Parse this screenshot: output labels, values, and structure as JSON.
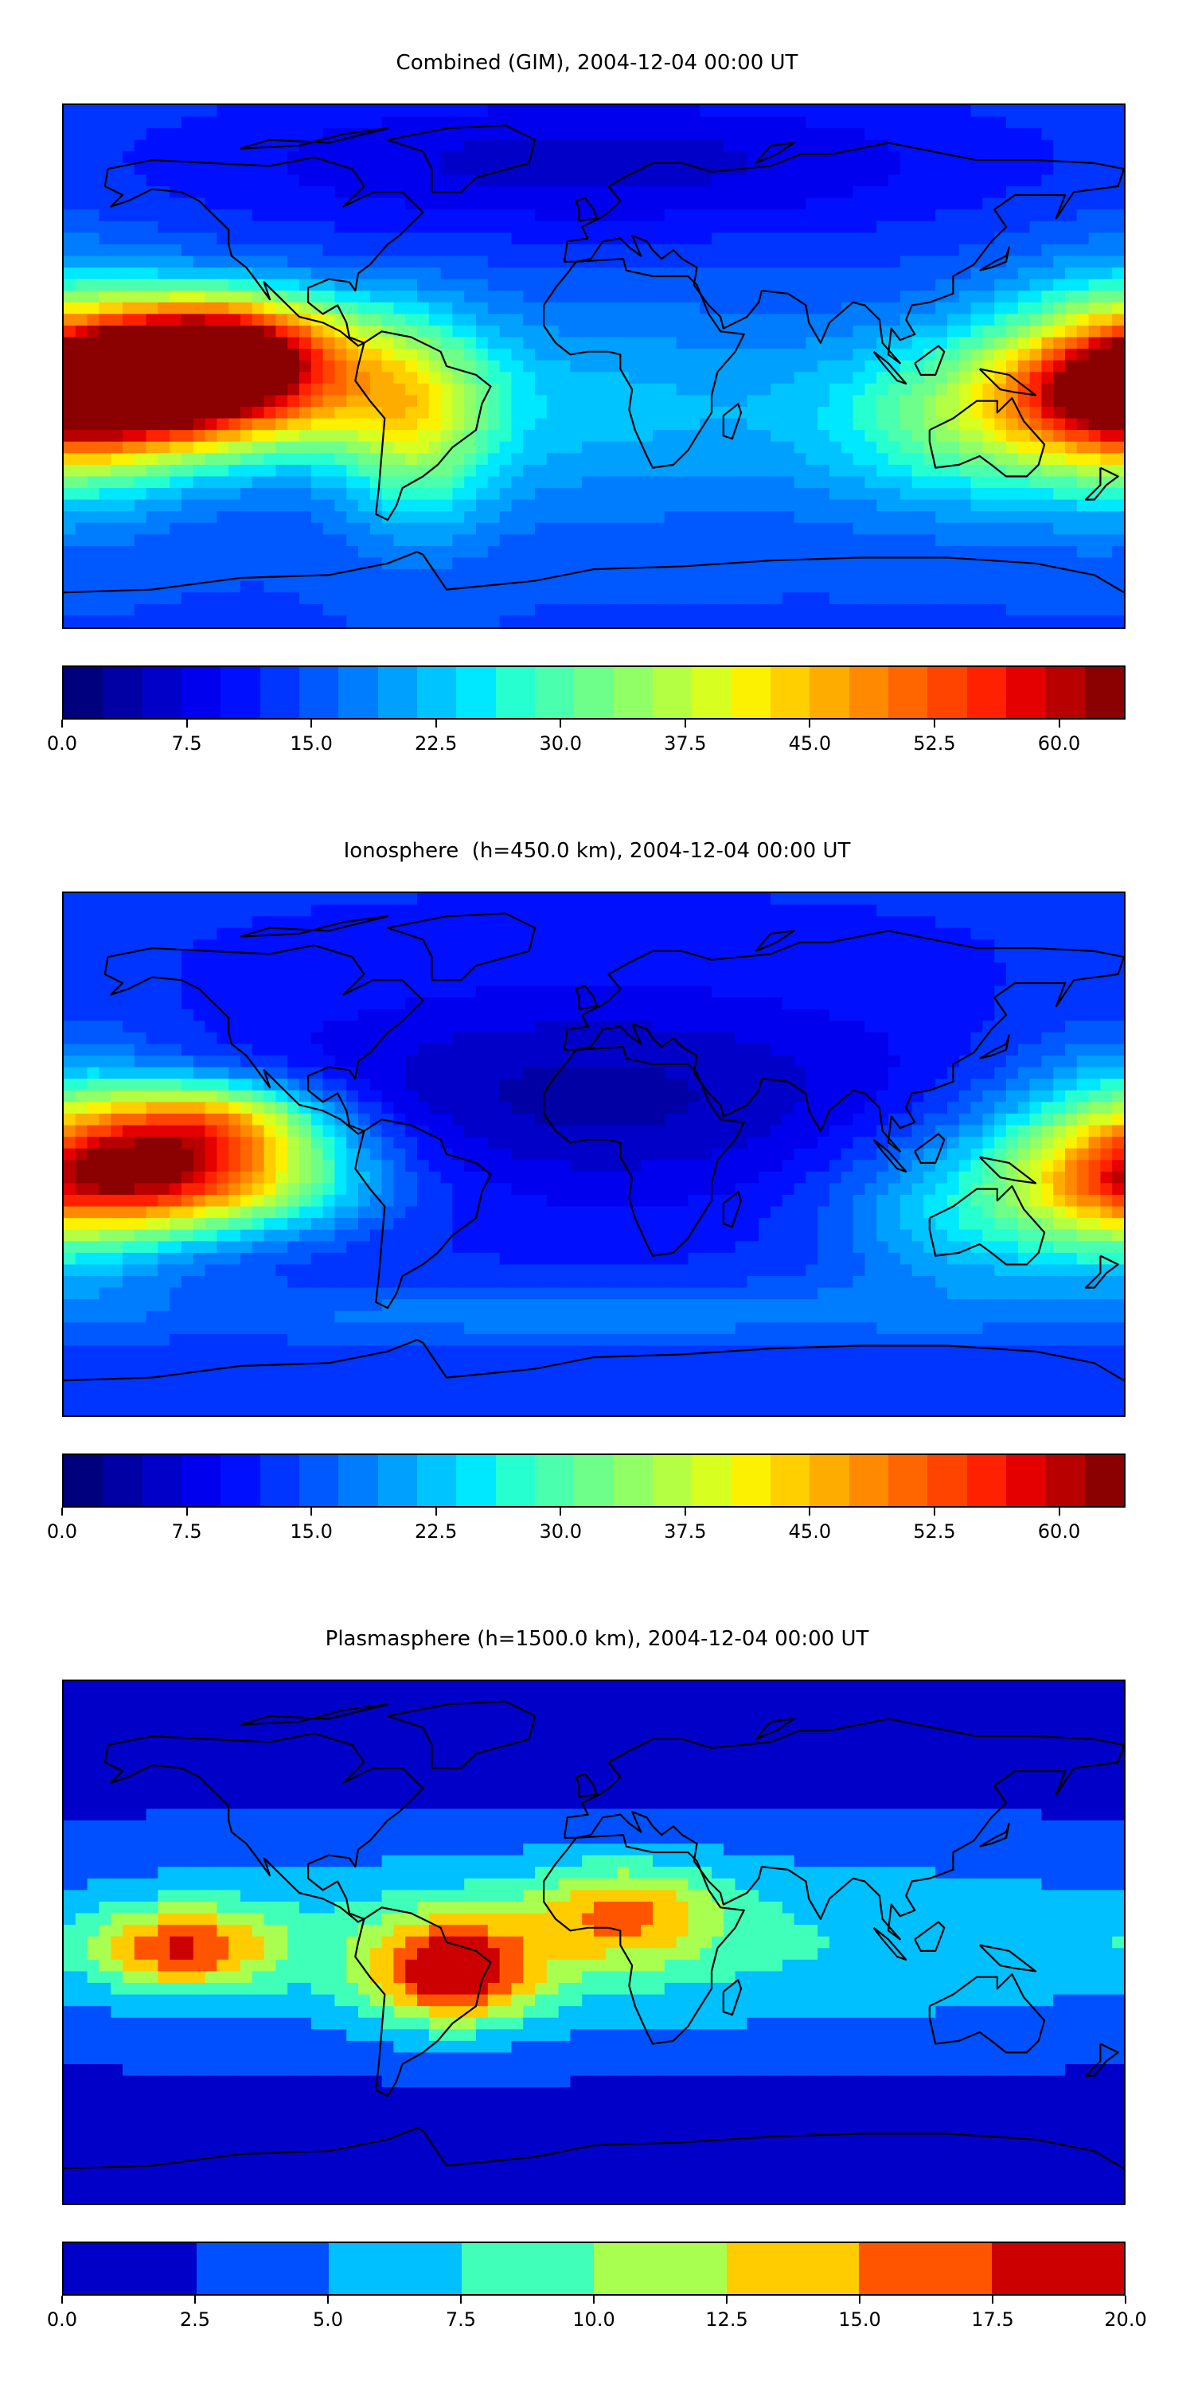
{
  "panels": [
    {
      "title": "Combined (GIM), 2004-12-04 00:00 UT",
      "quantity_scale": [
        0,
        64
      ],
      "colorbar": {
        "colors": [
          "#00007f",
          "#0000a4",
          "#0000c9",
          "#0000ee",
          "#0010ff",
          "#0034ff",
          "#0058ff",
          "#007cff",
          "#00a0ff",
          "#00c4ff",
          "#00e8ff",
          "#26ffd0",
          "#4affad",
          "#6dff8a",
          "#91ff66",
          "#b4ff43",
          "#d7ff1f",
          "#fbf100",
          "#ffcf00",
          "#ffac00",
          "#ff8900",
          "#ff6600",
          "#ff4400",
          "#ff2100",
          "#e50000",
          "#b80000",
          "#8b0000"
        ],
        "ticks": [
          "0.0",
          "7.5",
          "15.0",
          "22.5",
          "30.0",
          "37.5",
          "45.0",
          "52.5",
          "60.0"
        ],
        "tick_values": [
          0,
          7.5,
          15,
          22.5,
          30,
          37.5,
          45,
          52.5,
          60
        ],
        "range": [
          0,
          64
        ]
      },
      "features": [
        {
          "lon": -143,
          "lat": -8,
          "value": 64,
          "slon": 45,
          "slat": 15
        },
        {
          "lon": -125,
          "lat": 10,
          "value": 45,
          "slon": 30,
          "slat": 12
        },
        {
          "lon": -60,
          "lat": -20,
          "value": 30,
          "slon": 18,
          "slat": 25
        },
        {
          "lon": 178,
          "lat": -8,
          "value": 42,
          "slon": 30,
          "slat": 25
        },
        {
          "lon": 120,
          "lat": -20,
          "value": 26,
          "slon": 30,
          "slat": 20
        },
        {
          "lon": 0,
          "lat": -15,
          "value": 22,
          "slon": 80,
          "slat": 25
        },
        {
          "lon": 0,
          "lat": 70,
          "value": 6,
          "slon": 100,
          "slat": 18
        }
      ],
      "base_value": 14
    },
    {
      "title": "Ionosphere  (h=450.0 km), 2004-12-04 00:00 UT",
      "quantity_scale": [
        0,
        64
      ],
      "colorbar": {
        "colors": [
          "#00007f",
          "#0000a4",
          "#0000c9",
          "#0000ee",
          "#0010ff",
          "#0034ff",
          "#0058ff",
          "#007cff",
          "#00a0ff",
          "#00c4ff",
          "#00e8ff",
          "#26ffd0",
          "#4affad",
          "#6dff8a",
          "#91ff66",
          "#b4ff43",
          "#d7ff1f",
          "#fbf100",
          "#ffcf00",
          "#ffac00",
          "#ff8900",
          "#ff6600",
          "#ff4400",
          "#ff2100",
          "#e50000",
          "#b80000",
          "#8b0000"
        ],
        "ticks": [
          "0.0",
          "7.5",
          "15.0",
          "22.5",
          "30.0",
          "37.5",
          "45.0",
          "52.5",
          "60.0"
        ],
        "tick_values": [
          0,
          7.5,
          15,
          22.5,
          30,
          37.5,
          45,
          52.5,
          60
        ],
        "range": [
          0,
          64
        ]
      },
      "features": [
        {
          "lon": -140,
          "lat": -8,
          "value": 50,
          "slon": 40,
          "slat": 13
        },
        {
          "lon": -130,
          "lat": 12,
          "value": 38,
          "slon": 28,
          "slat": 10
        },
        {
          "lon": 178,
          "lat": -5,
          "value": 36,
          "slon": 30,
          "slat": 25
        },
        {
          "lon": 120,
          "lat": -20,
          "value": 22,
          "slon": 30,
          "slat": 20
        },
        {
          "lon": 0,
          "lat": 20,
          "value": 4,
          "slon": 80,
          "slat": 25
        },
        {
          "lon": 0,
          "lat": -55,
          "value": 18,
          "slon": 120,
          "slat": 8
        }
      ],
      "base_value": 12
    },
    {
      "title": "Plasmasphere (h=1500.0 km), 2004-12-04 00:00 UT",
      "quantity_scale": [
        0,
        20
      ],
      "colorbar": {
        "colors": [
          "#0000c8",
          "#0050ff",
          "#00c0ff",
          "#40ffb8",
          "#a8ff50",
          "#ffcc00",
          "#ff5500",
          "#cc0000"
        ],
        "ticks": [
          "0.0",
          "2.5",
          "5.0",
          "7.5",
          "10.0",
          "12.5",
          "15.0",
          "17.5",
          "20.0"
        ],
        "tick_values": [
          0,
          2.5,
          5,
          7.5,
          10,
          12.5,
          15,
          17.5,
          20
        ],
        "range": [
          0,
          20
        ]
      },
      "features": [
        {
          "lon": -48,
          "lat": -10,
          "value": 15.5,
          "slon": 20,
          "slat": 13
        },
        {
          "lon": -140,
          "lat": -2,
          "value": 13,
          "slon": 22,
          "slat": 10
        },
        {
          "lon": 10,
          "lat": 10,
          "value": 10,
          "slon": 22,
          "slat": 12
        },
        {
          "lon": 0,
          "lat": 0,
          "value": 8,
          "slon": 190,
          "slat": 26
        },
        {
          "lon": 0,
          "lat": 70,
          "value": 0.6,
          "slon": 200,
          "slat": 14
        },
        {
          "lon": 0,
          "lat": -70,
          "value": 0.8,
          "slon": 200,
          "slat": 14
        }
      ],
      "base_value": 1.5
    }
  ]
}
